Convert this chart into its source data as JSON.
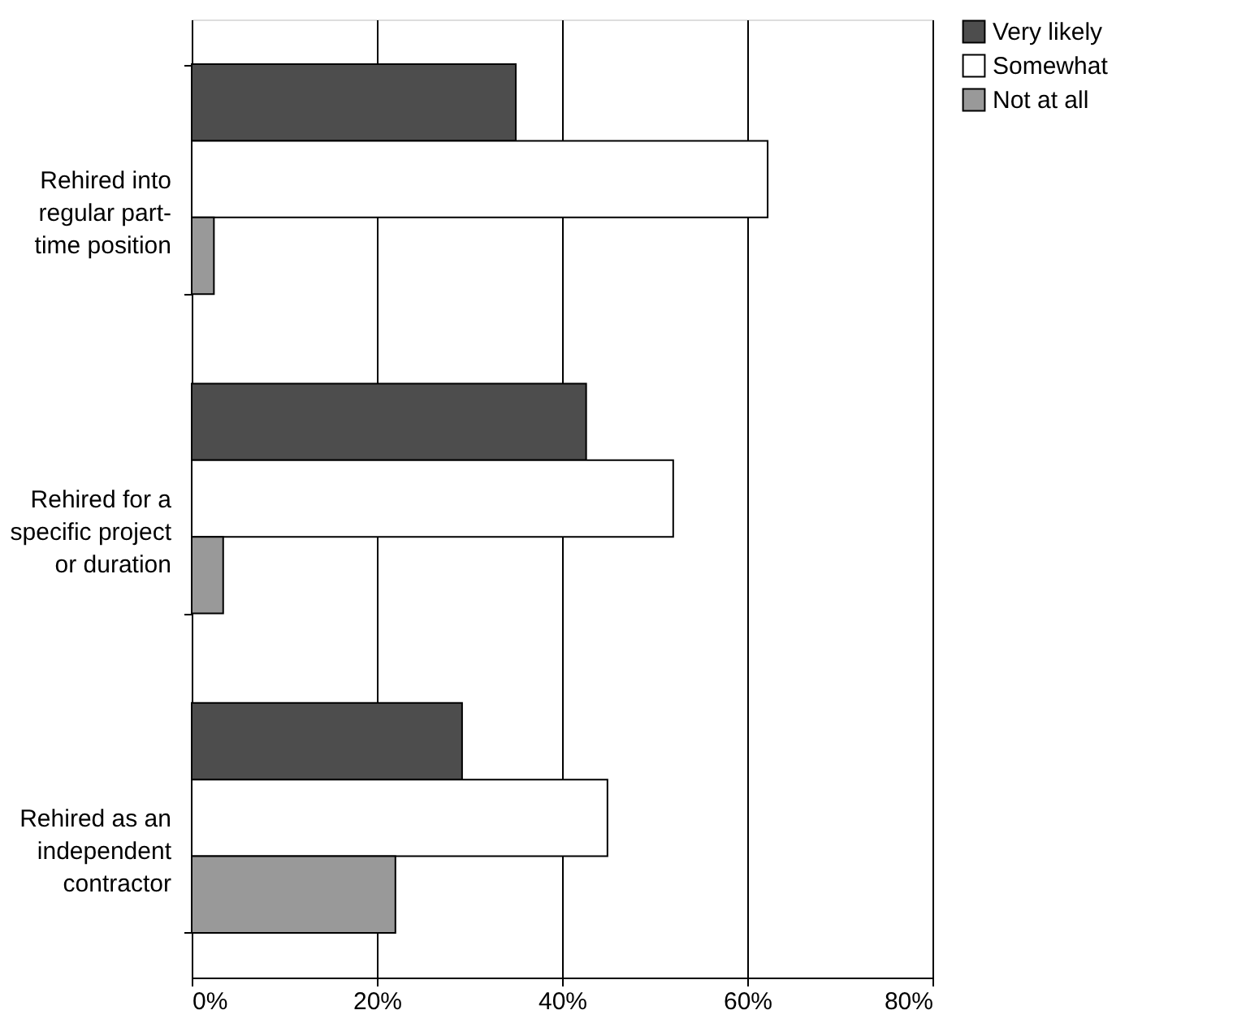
{
  "chart_data": {
    "type": "bar",
    "orientation": "horizontal",
    "categories": [
      "Rehired into regular part-time position",
      "Rehired for a specific project or duration",
      "Rehired as an independent contractor"
    ],
    "series": [
      {
        "name": "Very likely",
        "color": "#4d4d4d",
        "values": [
          35.0,
          42.6,
          29.2
        ]
      },
      {
        "name": "Somewhat",
        "color": "#ffffff",
        "values": [
          62.2,
          52.0,
          44.9
        ]
      },
      {
        "name": "Not at all",
        "color": "#999999",
        "values": [
          2.4,
          3.4,
          22.0
        ]
      }
    ],
    "xlim": [
      0,
      80
    ],
    "xticks": [
      {
        "value": 0,
        "label": "0%"
      },
      {
        "value": 20,
        "label": "20%"
      },
      {
        "value": 40,
        "label": "40%"
      },
      {
        "value": 60,
        "label": "60%"
      },
      {
        "value": 80,
        "label": "80%"
      }
    ],
    "grid": "x",
    "legend": "right"
  }
}
